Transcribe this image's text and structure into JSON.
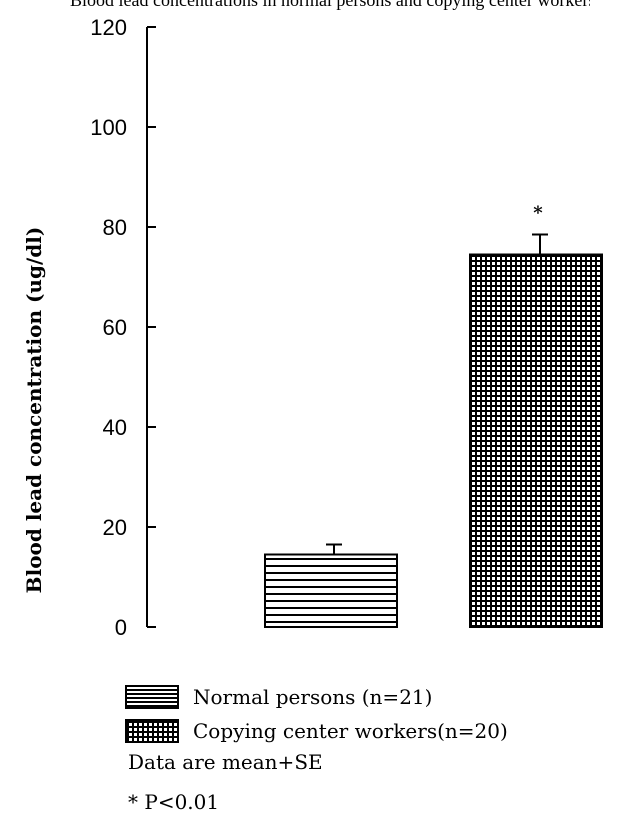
{
  "header": {
    "cropped_caption": "Blood lead concentrations in normal persons and copying center workers"
  },
  "chart_data": {
    "type": "bar",
    "title": "",
    "xlabel": "",
    "ylabel": "Blood lead concentration (ug/dl)",
    "ylim": [
      0,
      120
    ],
    "yticks": [
      0,
      20,
      40,
      60,
      80,
      100,
      120
    ],
    "categories": [
      "Normal persons (n=21)",
      "Copying center workers(n=20)"
    ],
    "values": [
      14.5,
      74.5
    ],
    "errors": [
      2,
      4
    ],
    "patterns": [
      "horizontal-lines",
      "grid"
    ],
    "significance": [
      "",
      "*"
    ],
    "grid": false,
    "legend_position": "bottom"
  },
  "legend": {
    "items": [
      {
        "label": "Normal persons (n=21)"
      },
      {
        "label": "Copying center workers(n=20)"
      }
    ]
  },
  "notes": {
    "data_note": "Data are mean+SE",
    "significance_note": "* P<0.01"
  },
  "colors": {
    "ink": "#000000",
    "paper": "#ffffff"
  }
}
